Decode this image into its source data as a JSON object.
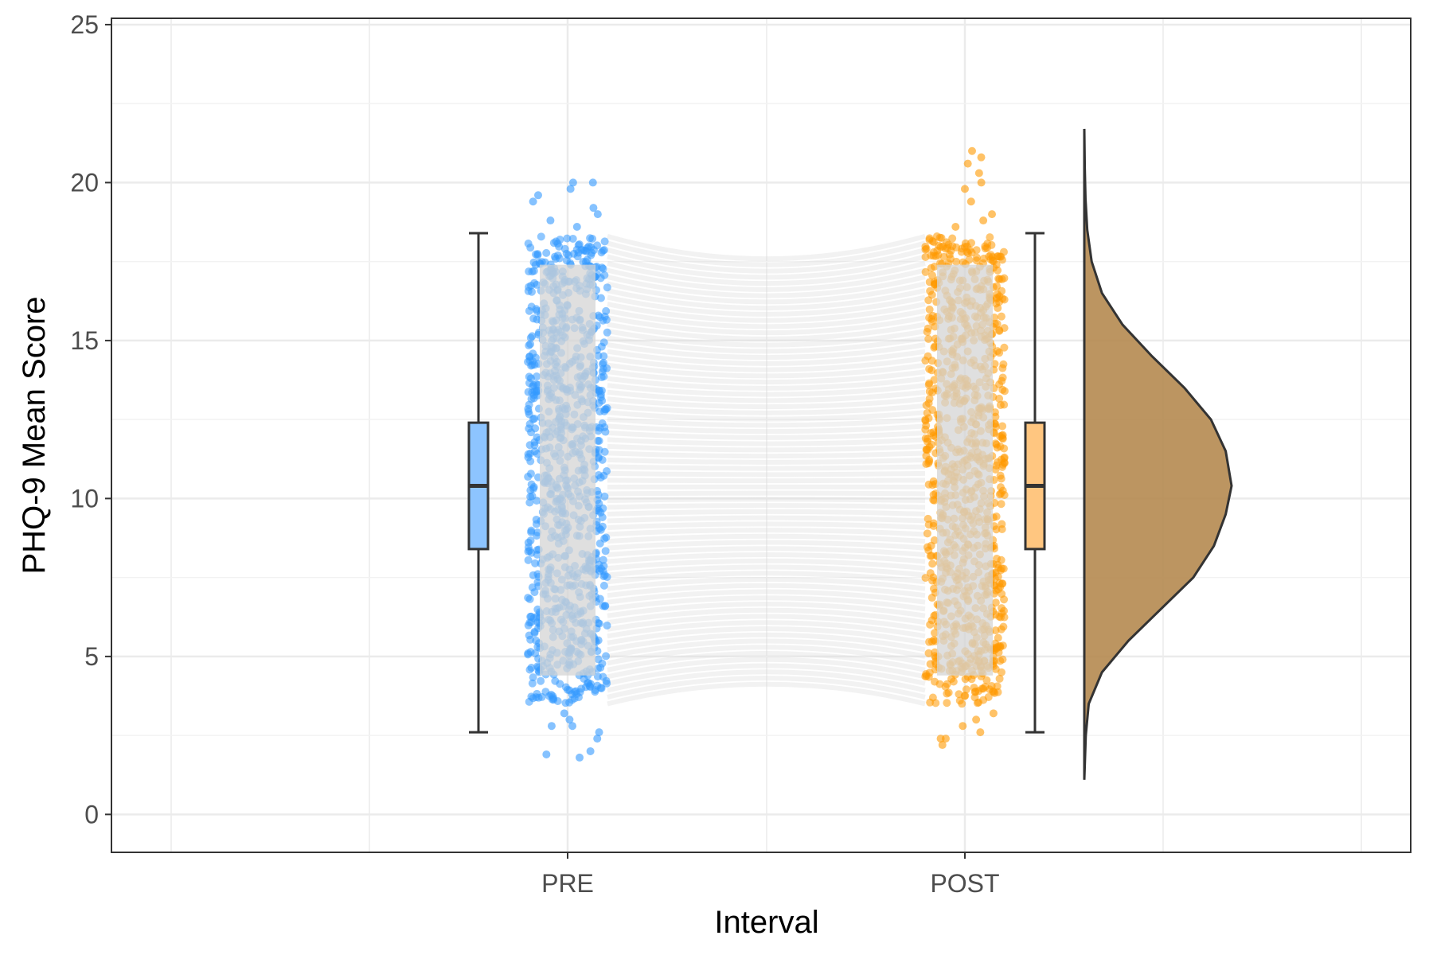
{
  "chart_data": {
    "type": "raincloud",
    "title": "",
    "xlabel": "Interval",
    "ylabel": "PHQ-9 Mean Score",
    "categories": [
      "PRE",
      "POST"
    ],
    "ylim": [
      -1.2,
      25.2
    ],
    "yticks": [
      0,
      5,
      10,
      15,
      20,
      25
    ],
    "grid": true,
    "legend": "none",
    "colors": {
      "PRE": "#3399ff",
      "POST": "#ff9900",
      "PRE_box": "#8dc4ff",
      "POST_box": "#ffc680",
      "density": "#b58a50",
      "lines": "#d9d9d9"
    },
    "series": [
      {
        "category": "PRE",
        "points_range": [
          3.5,
          18.3
        ],
        "outliers_high": [
          18.6,
          18.8,
          19.0,
          19.2,
          19.4,
          19.6,
          19.8,
          20.0,
          20.0
        ],
        "outliers_low": [
          3.2,
          3.0,
          2.8,
          2.8,
          2.6,
          2.4,
          2.0,
          1.9,
          1.8
        ],
        "box": {
          "whisker_low": 2.6,
          "q1": 8.4,
          "median": 10.4,
          "q3": 12.4,
          "whisker_high": 18.4
        }
      },
      {
        "category": "POST",
        "points_range": [
          3.5,
          18.3
        ],
        "outliers_high": [
          18.6,
          18.8,
          19.0,
          19.4,
          19.8,
          20.0,
          20.3,
          20.6,
          20.8,
          21.0
        ],
        "outliers_low": [
          3.2,
          3.0,
          2.8,
          2.6,
          2.4,
          2.4,
          2.2
        ],
        "box": {
          "whisker_low": 2.6,
          "q1": 8.4,
          "median": 10.4,
          "q3": 12.4,
          "whisker_high": 18.4
        }
      }
    ],
    "density": {
      "category": "POST",
      "y": [
        1.1,
        2.5,
        3.5,
        4.5,
        5.5,
        6.5,
        7.5,
        8.5,
        9.5,
        10.4,
        11.5,
        12.5,
        13.5,
        14.5,
        15.5,
        16.5,
        17.5,
        18.5,
        19.5,
        20.5,
        21.7
      ],
      "density": [
        0.0,
        0.01,
        0.03,
        0.12,
        0.3,
        0.52,
        0.74,
        0.88,
        0.96,
        1.0,
        0.96,
        0.86,
        0.68,
        0.46,
        0.26,
        0.12,
        0.05,
        0.02,
        0.008,
        0.003,
        0.0
      ]
    }
  }
}
